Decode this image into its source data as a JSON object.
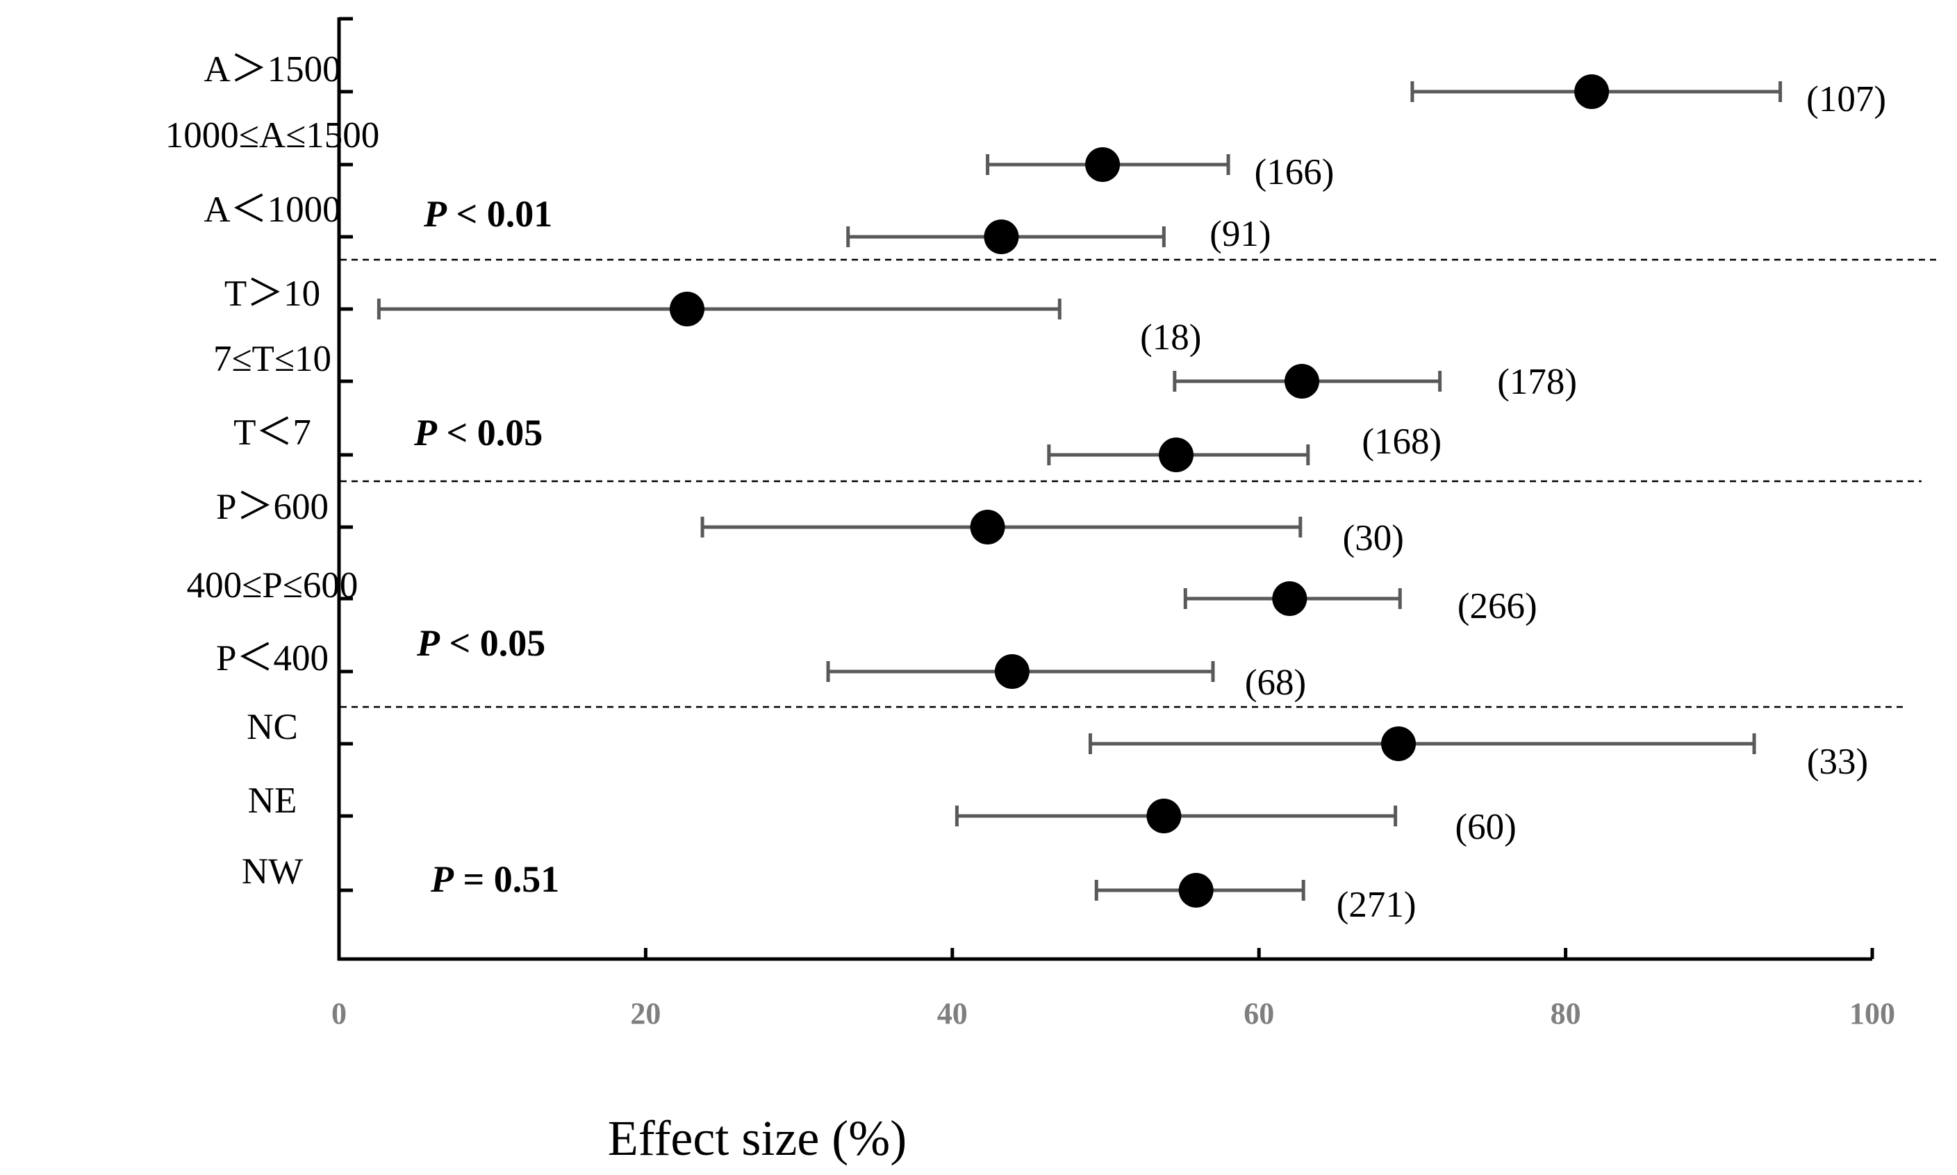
{
  "chart_data": {
    "type": "forest",
    "xlabel": "Effect size (%)",
    "xlim": [
      0,
      100
    ],
    "xticks": [
      "0",
      "20",
      "40",
      "60",
      "80",
      "100"
    ],
    "groups": [
      {
        "p_label": "P < 0.01",
        "p_italic": "P",
        "p_rest": " < 0.01",
        "rows": [
          {
            "label": "A＞1500",
            "mean": 81.7,
            "low": 70.0,
            "high": 94.0,
            "n": "(107)"
          },
          {
            "label": "1000≤A≤1500",
            "mean": 49.8,
            "low": 42.3,
            "high": 58.0,
            "n": "(166)"
          },
          {
            "label": "A＜1000",
            "mean": 43.2,
            "low": 33.2,
            "high": 53.8,
            "n": "(91)"
          }
        ]
      },
      {
        "p_label": "P < 0.05",
        "p_italic": "P",
        "p_rest": " < 0.05",
        "rows": [
          {
            "label": "T＞10",
            "mean": 22.7,
            "low": 2.6,
            "high": 47.0,
            "n": "(18)"
          },
          {
            "label": "7≤T≤10",
            "mean": 62.8,
            "low": 54.5,
            "high": 71.8,
            "n": "(178)"
          },
          {
            "label": "T＜7",
            "mean": 54.6,
            "low": 46.3,
            "high": 63.2,
            "n": "(168)"
          }
        ]
      },
      {
        "p_label": "P < 0.05",
        "p_italic": "P",
        "p_rest": " < 0.05",
        "rows": [
          {
            "label": "P＞600",
            "mean": 42.3,
            "low": 23.7,
            "high": 62.7,
            "n": "(30)"
          },
          {
            "label": "400≤P≤600",
            "mean": 62.0,
            "low": 55.2,
            "high": 69.2,
            "n": "(266)"
          },
          {
            "label": "P＜400",
            "mean": 43.9,
            "low": 31.9,
            "high": 57.0,
            "n": "(68)"
          }
        ]
      },
      {
        "p_label": "P = 0.51",
        "p_italic": "P",
        "p_rest": " = 0.51",
        "rows": [
          {
            "label": "NC",
            "mean": 69.1,
            "low": 49.0,
            "high": 92.3,
            "n": "(33)"
          },
          {
            "label": "NE",
            "mean": 53.8,
            "low": 40.3,
            "high": 68.9,
            "n": "(60)"
          },
          {
            "label": "NW",
            "mean": 55.9,
            "low": 49.4,
            "high": 62.9,
            "n": "(271)"
          }
        ]
      }
    ]
  }
}
